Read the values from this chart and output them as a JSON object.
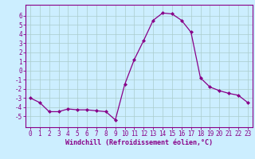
{
  "x": [
    0,
    1,
    2,
    3,
    4,
    5,
    6,
    7,
    8,
    9,
    10,
    11,
    12,
    13,
    14,
    15,
    16,
    17,
    18,
    19,
    20,
    21,
    22,
    23
  ],
  "y": [
    -3,
    -3.5,
    -4.5,
    -4.5,
    -4.2,
    -4.3,
    -4.3,
    -4.4,
    -4.5,
    -5.4,
    -1.5,
    1.2,
    3.3,
    5.5,
    6.3,
    6.2,
    5.5,
    4.2,
    -0.8,
    -1.8,
    -2.2,
    -2.5,
    -2.7,
    -3.5
  ],
  "line_color": "#880088",
  "marker": "D",
  "markersize": 2.0,
  "linewidth": 0.9,
  "xlabel": "Windchill (Refroidissement éolien,°C)",
  "xlabel_fontsize": 6.0,
  "ylabel_ticks": [
    -5,
    -4,
    -3,
    -2,
    -1,
    0,
    1,
    2,
    3,
    4,
    5,
    6
  ],
  "ylim": [
    -6.2,
    7.2
  ],
  "xlim": [
    -0.5,
    23.5
  ],
  "bg_color": "#cceeff",
  "grid_color": "#aacccc",
  "tick_fontsize": 5.5,
  "figsize": [
    3.2,
    2.0
  ],
  "dpi": 100
}
